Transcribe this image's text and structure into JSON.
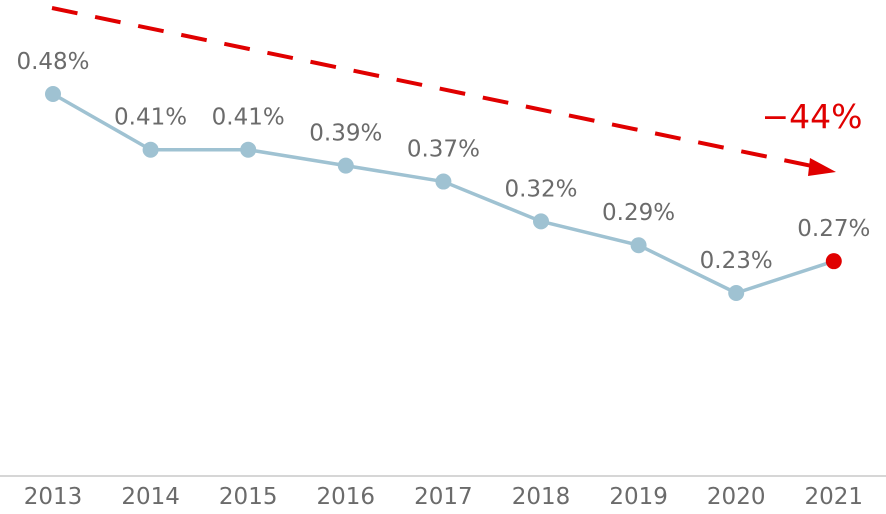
{
  "chart_data": {
    "type": "line",
    "title": "",
    "xlabel": "",
    "ylabel": "",
    "categories": [
      "2013",
      "2014",
      "2015",
      "2016",
      "2017",
      "2018",
      "2019",
      "2020",
      "2021"
    ],
    "series": [
      {
        "name": "rate",
        "values": [
          0.48,
          0.41,
          0.41,
          0.39,
          0.37,
          0.32,
          0.29,
          0.23,
          0.27
        ],
        "labels": [
          "0.48%",
          "0.41%",
          "0.41%",
          "0.39%",
          "0.37%",
          "0.32%",
          "0.29%",
          "0.23%",
          "0.27%"
        ]
      }
    ],
    "highlight_index": 8,
    "trend_label": "−44%",
    "ylim": [
      0.0,
      0.55
    ],
    "grid": false,
    "colors": {
      "line": "#9fc2d2",
      "marker": "#9fc2d2",
      "highlight": "#e00000",
      "trend": "#e00000",
      "axis": "#c8c8c8",
      "text": "#6b6b6b"
    }
  }
}
